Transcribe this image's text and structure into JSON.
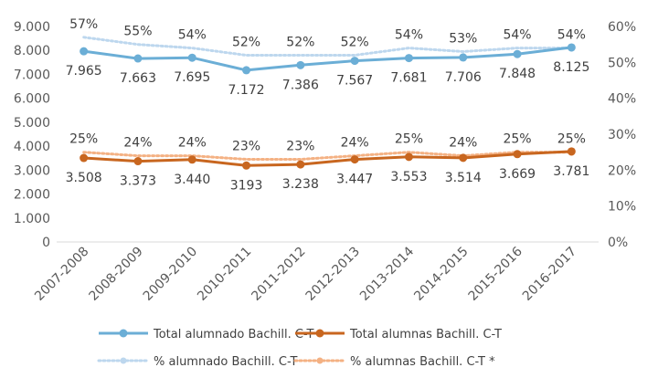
{
  "chart_data": {
    "type": "line",
    "categories": [
      "2007-2008",
      "2008-2009",
      "2009-2010",
      "2010-2011",
      "2011-2012",
      "2012-2013",
      "2013-2014",
      "2014-2015",
      "2015-2016",
      "2016-2017"
    ],
    "y_left": {
      "ylim": [
        0,
        9000
      ],
      "ticks": [
        "0",
        "1.000",
        "2.000",
        "3.000",
        "4.000",
        "5.000",
        "6.000",
        "7.000",
        "8.000",
        "9.000"
      ]
    },
    "y_right": {
      "ylim": [
        0,
        60
      ],
      "ticks": [
        "0%",
        "10%",
        "20%",
        "30%",
        "40%",
        "50%",
        "60%"
      ]
    },
    "grid": false,
    "legend_position": "bottom",
    "series": [
      {
        "name": "Total alumnado Bachill. C-T",
        "axis": "left",
        "style": "solid-marker",
        "color": "#6BAED6",
        "values": [
          7965,
          7663,
          7695,
          7172,
          7386,
          7567,
          7681,
          7706,
          7848,
          8125
        ],
        "labels": [
          "7.965",
          "7.663",
          "7.695",
          "7.172",
          "7.386",
          "7.567",
          "7.681",
          "7.706",
          "7.848",
          "8.125"
        ],
        "label_position": "below"
      },
      {
        "name": "Total alumnas Bachill. C-T",
        "axis": "left",
        "style": "solid-marker",
        "color": "#C8661F",
        "values": [
          3508,
          3373,
          3440,
          3193,
          3238,
          3447,
          3553,
          3514,
          3669,
          3781
        ],
        "labels": [
          "3.508",
          "3.373",
          "3.440",
          "3193",
          "3.238",
          "3.447",
          "3.553",
          "3.514",
          "3.669",
          "3.781"
        ],
        "label_position": "below"
      },
      {
        "name": "% alumnado Bachill. C-T",
        "axis": "right",
        "style": "dotted",
        "color": "#BDD7EE",
        "values": [
          57,
          55,
          54,
          52,
          52,
          52,
          54,
          53,
          54,
          54
        ],
        "labels": [
          "57%",
          "55%",
          "54%",
          "52%",
          "52%",
          "52%",
          "54%",
          "53%",
          "54%",
          "54%"
        ],
        "label_position": "above"
      },
      {
        "name": "% alumnas Bachill. C-T *",
        "axis": "right",
        "style": "dotted",
        "color": "#F4B183",
        "values": [
          25,
          24,
          24,
          23,
          23,
          24,
          25,
          24,
          25,
          25
        ],
        "labels": [
          "25%",
          "24%",
          "24%",
          "23%",
          "23%",
          "24%",
          "25%",
          "24%",
          "25%",
          "25%"
        ],
        "label_position": "above"
      }
    ]
  }
}
